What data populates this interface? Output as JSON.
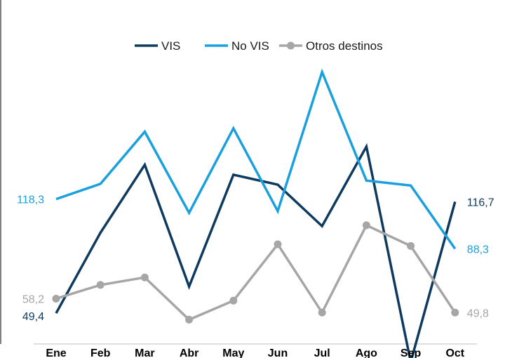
{
  "chart_data": {
    "type": "line",
    "title": "",
    "xlabel": "",
    "ylabel": "",
    "categories": [
      "Ene",
      "Feb",
      "Mar",
      "Abr",
      "May",
      "Jun",
      "Jul",
      "Ago",
      "Sep",
      "Oct"
    ],
    "ylim": [
      0,
      200
    ],
    "grid": false,
    "legend_position": "top-center",
    "series": [
      {
        "name": "VIS",
        "color": "#0e3a5f",
        "markers": false,
        "values": [
          49.4,
          98.0,
          139.0,
          65.5,
          133.0,
          127.0,
          102.0,
          150.0,
          20.0,
          116.7
        ],
        "labels": [
          {
            "index": 0,
            "text": "49,4",
            "side": "left"
          },
          {
            "index": 9,
            "text": "116,7",
            "side": "right"
          }
        ]
      },
      {
        "name": "No VIS",
        "color": "#1aa0dc",
        "markers": false,
        "values": [
          118.3,
          127.5,
          159.0,
          110.0,
          161.0,
          111.0,
          195.0,
          129.5,
          126.5,
          88.3
        ],
        "labels": [
          {
            "index": 0,
            "text": "118,3",
            "side": "left"
          },
          {
            "index": 9,
            "text": "88,3",
            "side": "right"
          }
        ]
      },
      {
        "name": "Otros destinos",
        "color": "#a6a6a6",
        "markers": true,
        "values": [
          58.2,
          66.5,
          71.0,
          45.5,
          57.0,
          91.0,
          49.8,
          102.5,
          90.0,
          49.8
        ],
        "labels": [
          {
            "index": 0,
            "text": "58,2",
            "side": "left"
          },
          {
            "index": 9,
            "text": "49,8",
            "side": "right"
          }
        ]
      }
    ]
  }
}
